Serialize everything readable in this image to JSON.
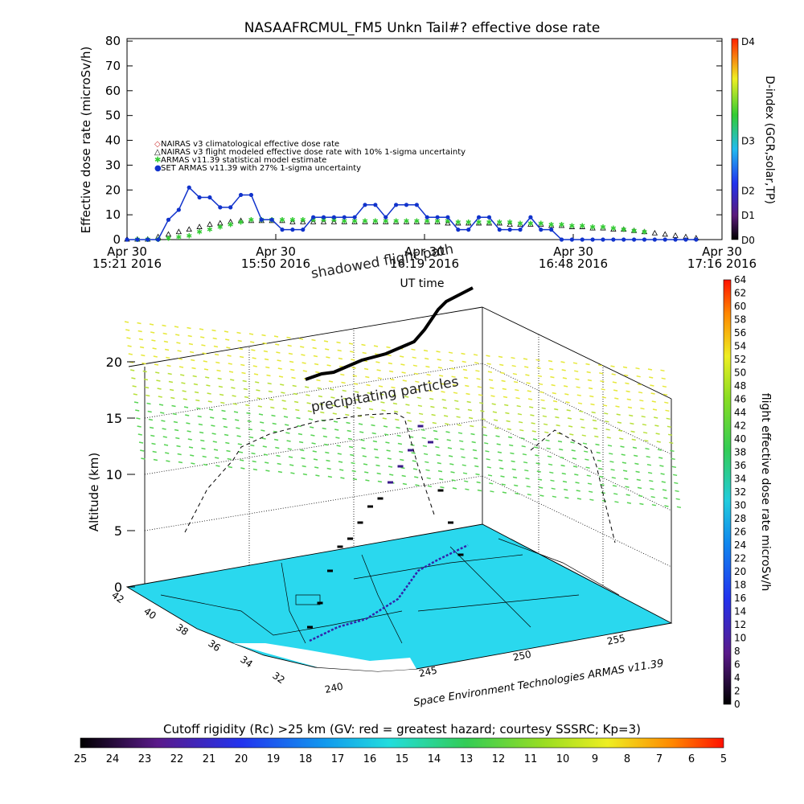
{
  "chart_data": [
    {
      "type": "line",
      "title": "NASAAFRCMUL_FM5 Unkn Tail#? effective dose rate",
      "xlabel": "UT time",
      "ylabel": "Effective dose rate (microSv/h)",
      "ylim": [
        0,
        81
      ],
      "yticks": [
        0,
        10,
        20,
        30,
        40,
        50,
        60,
        70,
        80
      ],
      "xticks": [
        {
          "top": "Apr 30",
          "bottom": "15:21 2016"
        },
        {
          "top": "Apr 30",
          "bottom": "15:50 2016"
        },
        {
          "top": "Apr 30",
          "bottom": "16:19 2016"
        },
        {
          "top": "Apr 30",
          "bottom": "16:48 2016"
        },
        {
          "top": "Apr 30",
          "bottom": "17:16 2016"
        }
      ],
      "xrange_minutes": [
        0,
        115
      ],
      "legend": [
        {
          "symbol": "◇",
          "color": "#cc3333",
          "label": "NAIRAS v3 climatological effective dose rate"
        },
        {
          "symbol": "△",
          "color": "#000000",
          "label": "NAIRAS v3 flight modeled effective dose rate with 10% 1-sigma uncertainty"
        },
        {
          "symbol": "✱",
          "color": "#33cc33",
          "label": "ARMAS v11.39 statistical model estimate"
        },
        {
          "symbol": "●",
          "color": "#1133cc",
          "label": "SET ARMAS v11.39 with 27% 1-sigma uncertainty"
        }
      ],
      "legend_position": "upper-left",
      "series": [
        {
          "name": "SET ARMAS v11.39 with 27% 1-sigma uncertainty",
          "color": "#1133cc",
          "x": [
            0,
            2,
            4,
            6,
            8,
            10,
            12,
            14,
            16,
            18,
            20,
            22,
            24,
            26,
            28,
            30,
            32,
            34,
            36,
            38,
            40,
            42,
            44,
            46,
            48,
            50,
            52,
            54,
            56,
            58,
            60,
            62,
            64,
            66,
            68,
            70,
            72,
            74,
            76,
            78,
            80,
            82,
            84,
            86,
            88,
            90,
            92,
            94,
            96,
            98,
            100,
            102,
            104,
            106,
            108,
            110
          ],
          "y": [
            0,
            0,
            0,
            0,
            8,
            12,
            21,
            17,
            17,
            13,
            13,
            18,
            18,
            8,
            8,
            4,
            4,
            4,
            9,
            9,
            9,
            9,
            9,
            14,
            14,
            9,
            14,
            14,
            14,
            9,
            9,
            9,
            4,
            4,
            9,
            9,
            4,
            4,
            4,
            9,
            4,
            4,
            0,
            0,
            0,
            0,
            0,
            0,
            0,
            0,
            0,
            0,
            0,
            0,
            0,
            0
          ]
        },
        {
          "name": "ARMAS v11.39 statistical model estimate",
          "color": "#33cc33",
          "x": [
            2,
            4,
            6,
            8,
            10,
            12,
            14,
            16,
            18,
            20,
            22,
            24,
            26,
            28,
            30,
            32,
            34,
            36,
            38,
            40,
            42,
            44,
            46,
            48,
            50,
            52,
            54,
            56,
            58,
            60,
            62,
            64,
            66,
            68,
            70,
            72,
            74,
            76,
            78,
            80,
            82,
            84,
            86,
            88,
            90,
            92,
            94,
            96,
            98,
            100
          ],
          "y": [
            0,
            0,
            0,
            0.5,
            1,
            1.5,
            3,
            4,
            5,
            6,
            7,
            8,
            8,
            8,
            8,
            8,
            8,
            8,
            8,
            8,
            7.5,
            7.5,
            7.5,
            7.5,
            7.5,
            7.5,
            7.5,
            7.5,
            7.5,
            7.5,
            7.5,
            7,
            7,
            7,
            7,
            7,
            7,
            6.5,
            6.5,
            6.5,
            6,
            6,
            5.5,
            5.5,
            5,
            5,
            4.5,
            4,
            3.5,
            3
          ]
        },
        {
          "name": "NAIRAS v3 flight modeled effective dose rate with 10% 1-sigma uncertainty",
          "color": "#000000",
          "x": [
            0,
            2,
            4,
            6,
            8,
            10,
            12,
            14,
            16,
            18,
            20,
            22,
            24,
            26,
            28,
            30,
            32,
            34,
            36,
            38,
            40,
            42,
            44,
            46,
            48,
            50,
            52,
            54,
            56,
            58,
            60,
            62,
            64,
            66,
            68,
            70,
            72,
            74,
            76,
            78,
            80,
            82,
            84,
            86,
            88,
            90,
            92,
            94,
            96,
            98,
            100,
            102,
            104,
            106,
            108,
            110
          ],
          "y": [
            0,
            0,
            0,
            1,
            2,
            3,
            4,
            5,
            6,
            6.5,
            7,
            7.5,
            7.5,
            7.5,
            7.5,
            7.5,
            7,
            7,
            7,
            7,
            7,
            7,
            7,
            7,
            7,
            7,
            7,
            7,
            7,
            7,
            7,
            6.5,
            6.5,
            6.5,
            6.5,
            6.5,
            6.5,
            6,
            6,
            6,
            6,
            5.5,
            5.5,
            5,
            5,
            4.5,
            4.5,
            4,
            4,
            3.5,
            3,
            2.5,
            2,
            1.5,
            1,
            0.5
          ]
        }
      ],
      "d_index_colorbar": {
        "label": "D-index (GCR,solar,TP)",
        "ticks": [
          {
            "label": "D4",
            "value": 80
          },
          {
            "label": "D3",
            "value": 40
          },
          {
            "label": "D2",
            "value": 20
          },
          {
            "label": "D1",
            "value": 10
          },
          {
            "label": "D0",
            "value": 0
          }
        ]
      }
    },
    {
      "type": "scatter",
      "subtype": "3d-flight-track",
      "zlabel": "Altitude (km)",
      "zticks": [
        0,
        5,
        10,
        15,
        20
      ],
      "lat_ticks": [
        42,
        40,
        38,
        36,
        34,
        32
      ],
      "lon_ticks": [
        240,
        245,
        250,
        255
      ],
      "annotations": [
        "shadowed flight path",
        "precipitating particles"
      ],
      "credit": "Space Environment Technologies ARMAS v11.39",
      "track_altitude_km": [
        0.5,
        2,
        4,
        5.5,
        6,
        7,
        8,
        8.5,
        9.5,
        10.5,
        11.5,
        13,
        12,
        9,
        7,
        5
      ],
      "dose_colorbar": {
        "label": "flight effective dose rate microSv/h",
        "min": 0,
        "max": 64,
        "step": 2
      },
      "rigidity_colorbar": {
        "title": "Cutoff rigidity (Rc) >25 km (GV: red = greatest hazard; courtesy SSSRC; Kp=3)",
        "ticks": [
          25,
          24,
          23,
          22,
          21,
          20,
          19,
          18,
          17,
          16,
          15,
          14,
          13,
          12,
          11,
          10,
          9,
          8,
          7,
          6,
          5
        ]
      }
    }
  ]
}
